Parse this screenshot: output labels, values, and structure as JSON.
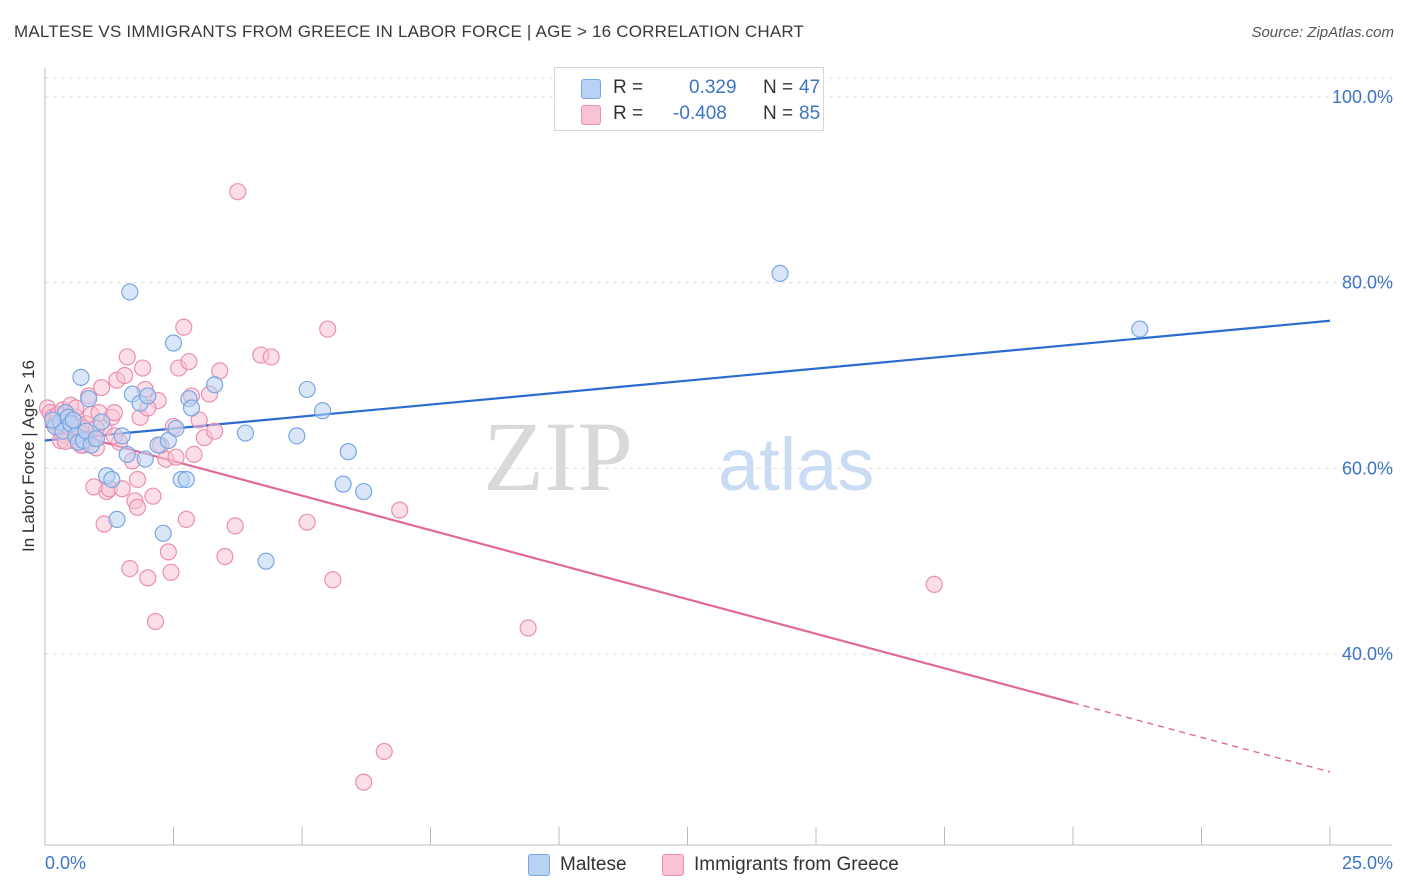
{
  "header": {
    "title": "MALTESE VS IMMIGRANTS FROM GREECE IN LABOR FORCE | AGE > 16 CORRELATION CHART",
    "source": "Source: ZipAtlas.com"
  },
  "watermark": {
    "zip": "ZIP",
    "atlas": "atlas"
  },
  "legend": {
    "r_label": "R =",
    "n_label": "N =",
    "rows": [
      {
        "r": "0.329",
        "n": "47"
      },
      {
        "r": "-0.408",
        "n": "85"
      }
    ]
  },
  "colors": {
    "blue_fill": "#b8d2f3",
    "blue_stroke": "#7aa7e0",
    "blue_line": "#2c6ccf",
    "pink_fill": "#f7c3d4",
    "pink_stroke": "#ec8fb0",
    "pink_line": "#e0689a",
    "axis_text": "#3d74c6",
    "grid": "#dddddd"
  },
  "chart_data": {
    "type": "scatter",
    "title": "MALTESE VS IMMIGRANTS FROM GREECE IN LABOR FORCE | AGE > 16 CORRELATION CHART",
    "xlabel": "",
    "ylabel": "In Labor Force | Age > 16",
    "xlim": [
      0,
      25
    ],
    "ylim": [
      20,
      102
    ],
    "x_tick_labels": [
      "0.0%",
      "25.0%"
    ],
    "y_ticks": [
      40,
      60,
      80,
      100
    ],
    "y_tick_labels": [
      "40.0%",
      "60.0%",
      "80.0%",
      "100.0%"
    ],
    "grid": true,
    "series": [
      {
        "name": "Maltese",
        "color": "blue",
        "r": 0.329,
        "n": 47,
        "trend": {
          "x0": 0,
          "y0": 63.0,
          "x1": 25,
          "y1": 75.9,
          "solid_until": 25
        },
        "points": [
          [
            0.2,
            64.5
          ],
          [
            0.3,
            65.0
          ],
          [
            0.35,
            64.0
          ],
          [
            0.4,
            66.0
          ],
          [
            0.45,
            65.5
          ],
          [
            0.5,
            64.8
          ],
          [
            0.55,
            65.2
          ],
          [
            0.6,
            63.5
          ],
          [
            0.65,
            62.8
          ],
          [
            0.7,
            69.8
          ],
          [
            0.75,
            63.0
          ],
          [
            0.8,
            64.0
          ],
          [
            0.85,
            67.5
          ],
          [
            0.9,
            62.5
          ],
          [
            1.0,
            63.2
          ],
          [
            1.1,
            65.0
          ],
          [
            1.2,
            59.2
          ],
          [
            1.3,
            58.8
          ],
          [
            1.4,
            54.5
          ],
          [
            1.5,
            63.5
          ],
          [
            1.6,
            61.5
          ],
          [
            1.65,
            79.0
          ],
          [
            1.7,
            68.0
          ],
          [
            1.85,
            67.0
          ],
          [
            1.95,
            61.0
          ],
          [
            2.0,
            67.8
          ],
          [
            2.2,
            62.5
          ],
          [
            2.3,
            53.0
          ],
          [
            2.4,
            63.0
          ],
          [
            2.5,
            73.5
          ],
          [
            2.55,
            64.3
          ],
          [
            2.65,
            58.8
          ],
          [
            2.75,
            58.8
          ],
          [
            2.8,
            67.5
          ],
          [
            2.85,
            66.5
          ],
          [
            3.3,
            69.0
          ],
          [
            3.9,
            63.8
          ],
          [
            4.3,
            50.0
          ],
          [
            4.9,
            63.5
          ],
          [
            5.1,
            68.5
          ],
          [
            5.4,
            66.2
          ],
          [
            5.9,
            61.8
          ],
          [
            5.8,
            58.3
          ],
          [
            6.2,
            57.5
          ],
          [
            14.3,
            81.0
          ],
          [
            21.3,
            75.0
          ],
          [
            0.15,
            65.2
          ]
        ]
      },
      {
        "name": "Immigrants from Greece",
        "color": "pink",
        "r": -0.408,
        "n": 85,
        "trend": {
          "x0": 0,
          "y0": 64.5,
          "x1": 25,
          "y1": 27.3,
          "solid_until": 20
        },
        "points": [
          [
            0.05,
            66.5
          ],
          [
            0.1,
            66.0
          ],
          [
            0.15,
            65.5
          ],
          [
            0.2,
            64.8
          ],
          [
            0.25,
            65.8
          ],
          [
            0.3,
            64.0
          ],
          [
            0.35,
            66.3
          ],
          [
            0.4,
            63.5
          ],
          [
            0.45,
            65.0
          ],
          [
            0.5,
            64.2
          ],
          [
            0.55,
            63.0
          ],
          [
            0.6,
            65.5
          ],
          [
            0.65,
            64.5
          ],
          [
            0.7,
            63.8
          ],
          [
            0.75,
            62.5
          ],
          [
            0.8,
            64.8
          ],
          [
            0.85,
            67.8
          ],
          [
            0.9,
            65.8
          ],
          [
            0.95,
            63.2
          ],
          [
            1.0,
            62.2
          ],
          [
            1.05,
            66.0
          ],
          [
            1.1,
            68.7
          ],
          [
            1.15,
            64.3
          ],
          [
            1.2,
            57.5
          ],
          [
            1.25,
            57.8
          ],
          [
            1.3,
            65.5
          ],
          [
            1.35,
            66.0
          ],
          [
            1.4,
            69.5
          ],
          [
            1.45,
            62.8
          ],
          [
            1.5,
            57.8
          ],
          [
            1.55,
            70.0
          ],
          [
            1.6,
            72.0
          ],
          [
            1.65,
            49.2
          ],
          [
            1.7,
            60.8
          ],
          [
            1.75,
            56.5
          ],
          [
            1.8,
            58.8
          ],
          [
            1.85,
            65.5
          ],
          [
            1.9,
            70.8
          ],
          [
            1.95,
            68.5
          ],
          [
            2.0,
            48.2
          ],
          [
            2.1,
            57.0
          ],
          [
            2.15,
            43.5
          ],
          [
            2.2,
            67.3
          ],
          [
            2.35,
            61.0
          ],
          [
            2.4,
            51.0
          ],
          [
            2.45,
            48.8
          ],
          [
            2.5,
            64.5
          ],
          [
            2.6,
            70.8
          ],
          [
            2.7,
            75.2
          ],
          [
            2.75,
            54.5
          ],
          [
            2.8,
            71.5
          ],
          [
            2.85,
            67.8
          ],
          [
            2.9,
            61.5
          ],
          [
            3.0,
            65.2
          ],
          [
            3.1,
            63.3
          ],
          [
            3.2,
            68.0
          ],
          [
            3.3,
            64.0
          ],
          [
            3.4,
            70.5
          ],
          [
            3.5,
            50.5
          ],
          [
            3.7,
            53.8
          ],
          [
            3.75,
            89.8
          ],
          [
            4.2,
            72.2
          ],
          [
            4.4,
            72.0
          ],
          [
            5.1,
            54.2
          ],
          [
            5.5,
            75.0
          ],
          [
            5.6,
            48.0
          ],
          [
            6.6,
            29.5
          ],
          [
            6.2,
            26.2
          ],
          [
            6.9,
            55.5
          ],
          [
            9.4,
            42.8
          ],
          [
            17.3,
            47.5
          ],
          [
            1.15,
            54.0
          ],
          [
            1.8,
            55.8
          ],
          [
            0.95,
            58.0
          ],
          [
            2.25,
            62.5
          ],
          [
            2.55,
            61.2
          ],
          [
            0.3,
            63.0
          ],
          [
            0.5,
            66.8
          ],
          [
            0.7,
            62.5
          ],
          [
            1.0,
            64.3
          ],
          [
            1.35,
            63.5
          ],
          [
            0.6,
            66.5
          ],
          [
            0.4,
            62.9
          ],
          [
            0.2,
            64.5
          ],
          [
            2.0,
            66.5
          ]
        ]
      }
    ]
  },
  "bottom_legend": [
    {
      "label": "Maltese"
    },
    {
      "label": "Immigrants from Greece"
    }
  ]
}
